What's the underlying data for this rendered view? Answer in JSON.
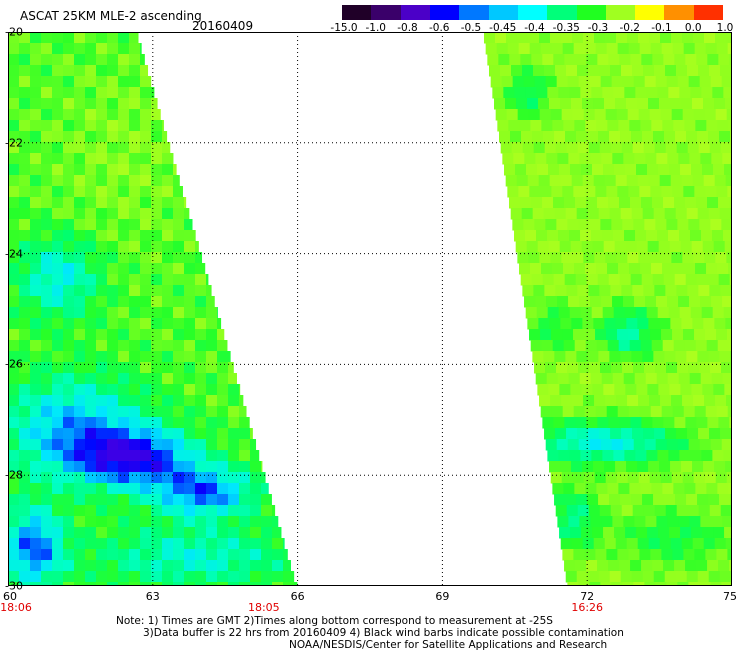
{
  "title": "ASCAT 25KM MLE-2 ascending",
  "date": "20160409",
  "colorbar": {
    "ticks": [
      "-15.0",
      "-1.0",
      "-0.8",
      "-0.6",
      "-0.5",
      "-0.45",
      "-0.4",
      "-0.35",
      "-0.3",
      "-0.2",
      "-0.1",
      "0.0",
      "1.0"
    ],
    "colors": [
      "#200028",
      "#3a006a",
      "#4b00c8",
      "#0000ff",
      "#0078ff",
      "#00c8ff",
      "#00ffff",
      "#00ff7a",
      "#20ff20",
      "#a0ff20",
      "#ffff00",
      "#ff9000",
      "#ff3000"
    ]
  },
  "map": {
    "lon_range": [
      60,
      75
    ],
    "lat_range": [
      -20,
      -30
    ],
    "x_ticks": [
      "60",
      "63",
      "66",
      "69",
      "72",
      "75"
    ],
    "y_ticks": [
      "-20",
      "-22",
      "-24",
      "-26",
      "-28",
      "-30"
    ],
    "pass_times": [
      {
        "label": "18:06",
        "lon": 60
      },
      {
        "label": "18:05",
        "lon": 65.3
      },
      {
        "label": "16:26",
        "lon": 72
      }
    ]
  },
  "notes": {
    "line1": "Note: 1) Times are GMT 2)Times along bottom correspond to measurement at -25S",
    "line2": "3)Data buffer is 22 hrs from 20160409 4) Black wind barbs indicate possible contamination",
    "line3": "NOAA/NESDIS/Center for Satellite Applications and Research"
  }
}
